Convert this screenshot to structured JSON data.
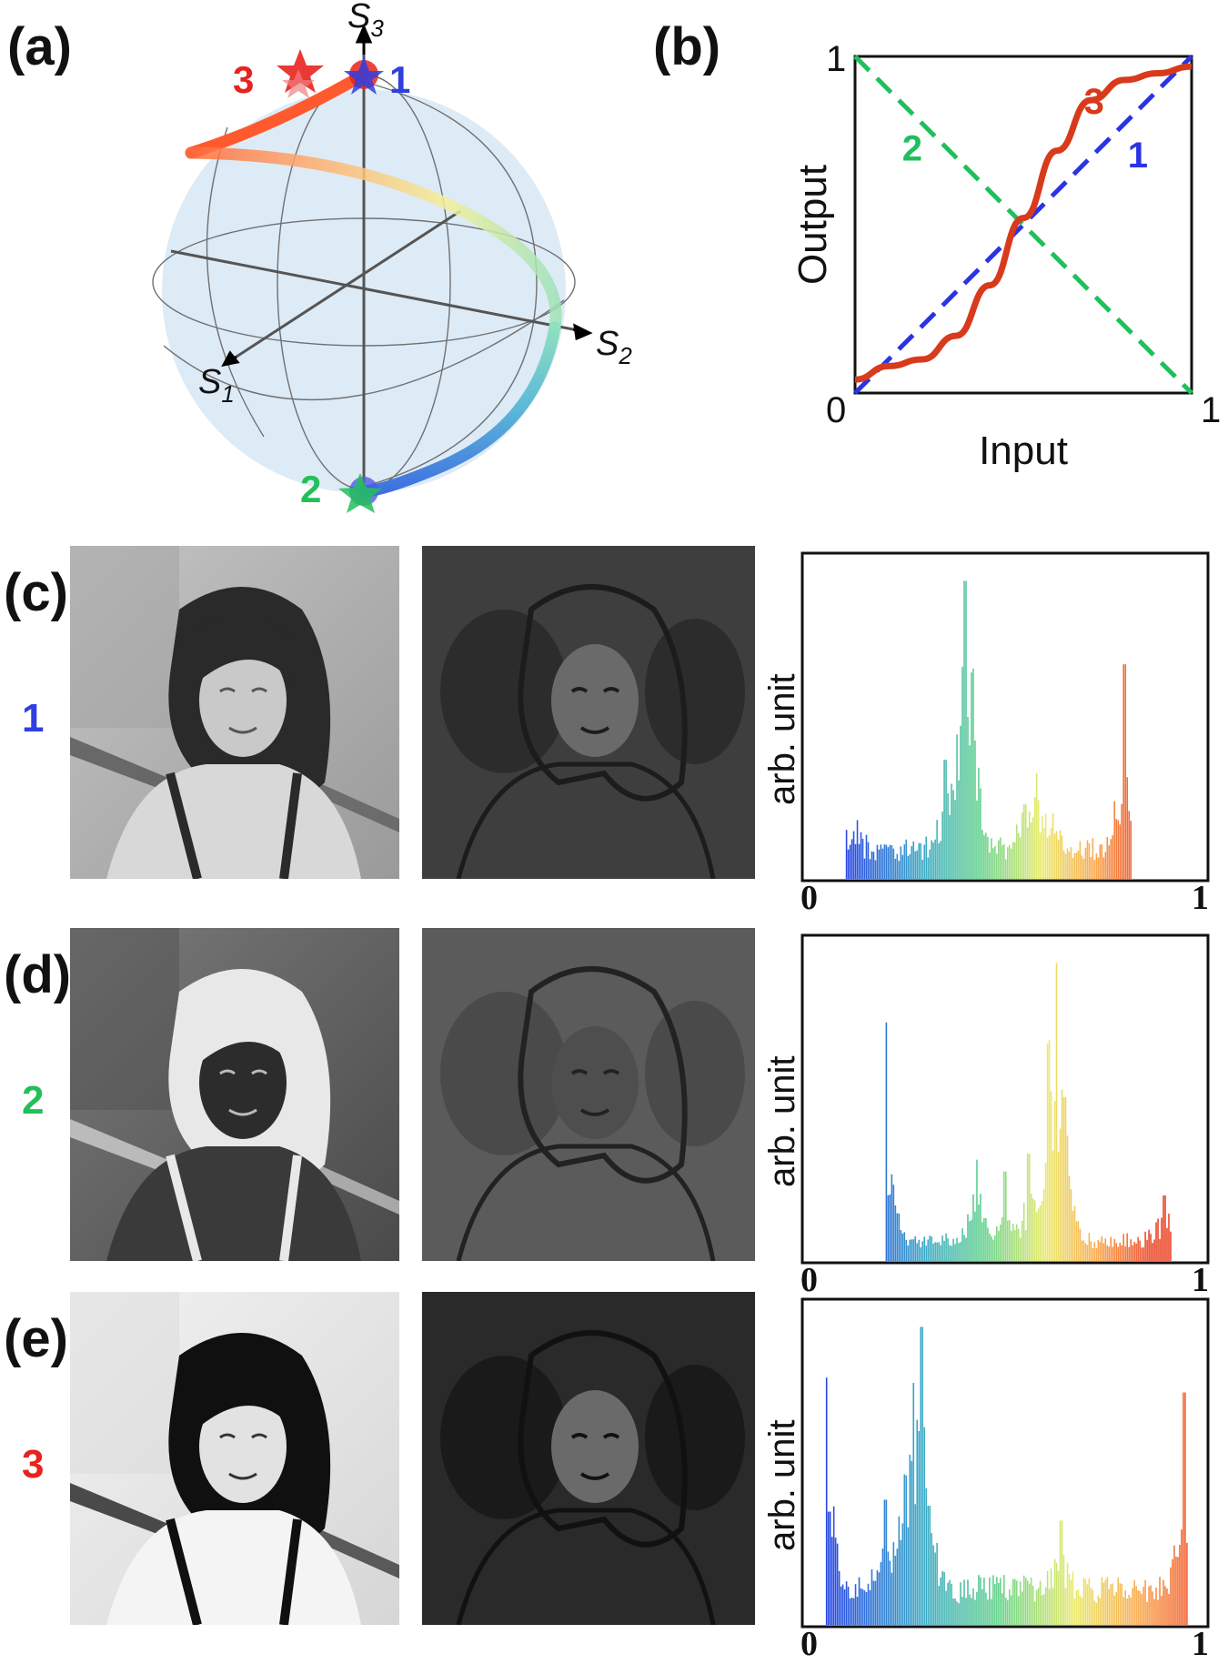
{
  "panels": {
    "a": {
      "label": "(a)",
      "axes": {
        "s3": "S",
        "s3_sub": "3",
        "s2": "S",
        "s2_sub": "2",
        "s1": "S",
        "s1_sub": "1"
      },
      "points": [
        {
          "id": "1",
          "label": "1",
          "color": "#2f3fe0"
        },
        {
          "id": "2",
          "label": "2",
          "color": "#22c05a"
        },
        {
          "id": "3",
          "label": "3",
          "color": "#e8221e"
        }
      ],
      "colors": {
        "sphere": "#d7e9f7",
        "grid": "#666666",
        "axis": "#555555"
      }
    },
    "b": {
      "label": "(b)",
      "chart_data": {
        "type": "line",
        "xlabel": "Input",
        "ylabel": "Output",
        "xlim": [
          0,
          1
        ],
        "ylim": [
          0,
          1
        ],
        "x_ticks": [
          "0",
          "1"
        ],
        "y_ticks": [
          "0",
          "1"
        ],
        "series": [
          {
            "name": "1",
            "style": "dashed",
            "color": "#2b34e3",
            "x": [
              0,
              1
            ],
            "y": [
              0,
              1
            ]
          },
          {
            "name": "2",
            "style": "dashed",
            "color": "#1fbf5c",
            "x": [
              0,
              1
            ],
            "y": [
              1,
              0
            ]
          },
          {
            "name": "3",
            "style": "solid",
            "color": "#d83a1c",
            "x": [
              0,
              0.1,
              0.2,
              0.3,
              0.4,
              0.5,
              0.6,
              0.7,
              0.8,
              0.9,
              1.0
            ],
            "y": [
              0.04,
              0.08,
              0.1,
              0.17,
              0.32,
              0.52,
              0.72,
              0.87,
              0.93,
              0.95,
              0.97
            ]
          }
        ]
      }
    },
    "rows": [
      {
        "label": "(c)",
        "num": "1",
        "num_color": "#2f3fe0",
        "mode": "normal",
        "hist": {
          "type": "bar",
          "ylabel": "arb. unit",
          "xlim": [
            0,
            1
          ],
          "x_ticks": [
            "0",
            "1"
          ],
          "range": [
            0.1,
            0.82
          ],
          "peaks": [
            {
              "x": 0.4,
              "h": 0.95
            },
            {
              "x": 0.42,
              "h": 0.7
            },
            {
              "x": 0.38,
              "h": 0.45
            },
            {
              "x": 0.35,
              "h": 0.4
            },
            {
              "x": 0.58,
              "h": 0.32
            },
            {
              "x": 0.55,
              "h": 0.25
            },
            {
              "x": 0.8,
              "h": 0.72
            },
            {
              "x": 0.12,
              "h": 0.16
            },
            {
              "x": 0.62,
              "h": 0.22
            }
          ],
          "base": 0.1
        }
      },
      {
        "label": "(d)",
        "num": "2",
        "num_color": "#22c05a",
        "mode": "invert",
        "hist": {
          "type": "bar",
          "ylabel": "arb. unit",
          "xlim": [
            0,
            1
          ],
          "x_ticks": [
            "0",
            "1"
          ],
          "range": [
            0.2,
            0.92
          ],
          "peaks": [
            {
              "x": 0.2,
              "h": 0.72
            },
            {
              "x": 0.21,
              "h": 0.22
            },
            {
              "x": 0.63,
              "h": 0.98
            },
            {
              "x": 0.61,
              "h": 0.72
            },
            {
              "x": 0.65,
              "h": 0.55
            },
            {
              "x": 0.43,
              "h": 0.34
            },
            {
              "x": 0.5,
              "h": 0.3
            },
            {
              "x": 0.56,
              "h": 0.36
            },
            {
              "x": 0.9,
              "h": 0.22
            }
          ],
          "base": 0.07
        }
      },
      {
        "label": "(e)",
        "num": "3",
        "num_color": "#e8221e",
        "mode": "contrast",
        "hist": {
          "type": "bar",
          "ylabel": "arb. unit",
          "xlim": [
            0,
            1
          ],
          "x_ticks": [
            "0",
            "1"
          ],
          "range": [
            0.05,
            0.96
          ],
          "peaks": [
            {
              "x": 0.05,
              "h": 0.7
            },
            {
              "x": 0.06,
              "h": 0.38
            },
            {
              "x": 0.29,
              "h": 0.95
            },
            {
              "x": 0.27,
              "h": 0.72
            },
            {
              "x": 0.25,
              "h": 0.5
            },
            {
              "x": 0.31,
              "h": 0.4
            },
            {
              "x": 0.2,
              "h": 0.42
            },
            {
              "x": 0.64,
              "h": 0.35
            },
            {
              "x": 0.95,
              "h": 0.78
            }
          ],
          "base": 0.12
        }
      }
    ]
  }
}
